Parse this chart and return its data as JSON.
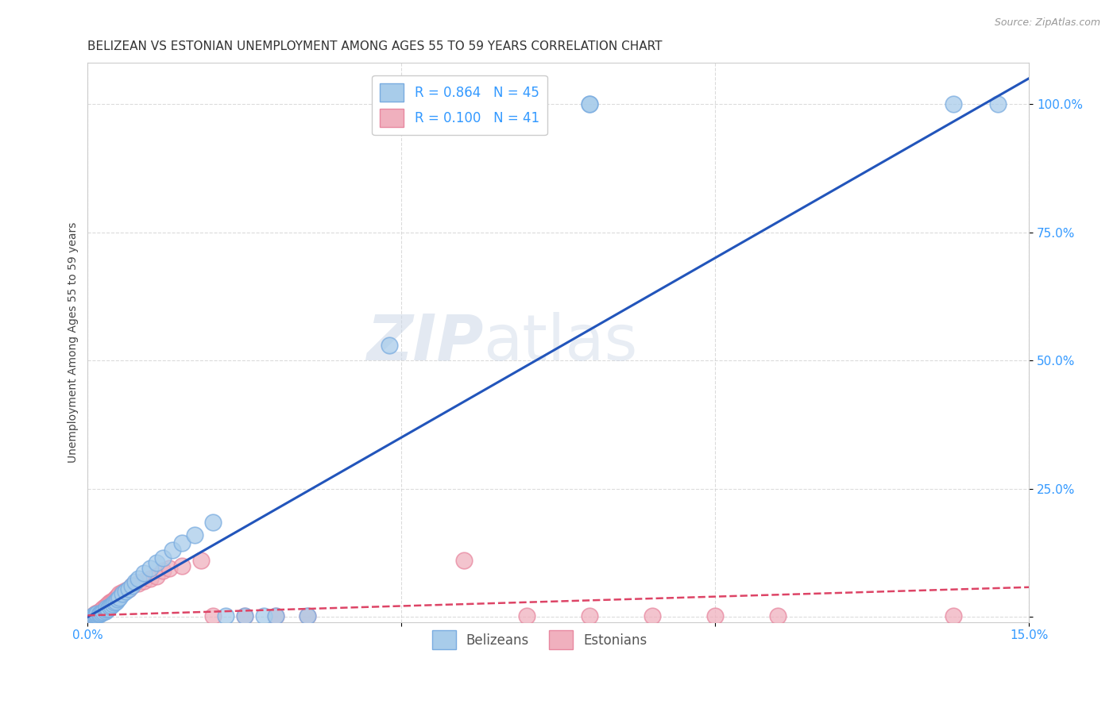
{
  "title": "BELIZEAN VS ESTONIAN UNEMPLOYMENT AMONG AGES 55 TO 59 YEARS CORRELATION CHART",
  "source": "Source: ZipAtlas.com",
  "ylabel": "Unemployment Among Ages 55 to 59 years",
  "xlim": [
    0.0,
    0.15
  ],
  "ylim": [
    -0.01,
    1.08
  ],
  "xticks": [
    0.0,
    0.05,
    0.1,
    0.15
  ],
  "xticklabels": [
    "0.0%",
    "",
    "",
    "15.0%"
  ],
  "ytick_positions": [
    0.0,
    0.25,
    0.5,
    0.75,
    1.0
  ],
  "yticklabels": [
    "",
    "25.0%",
    "50.0%",
    "75.0%",
    "100.0%"
  ],
  "watermark_zip": "ZIP",
  "watermark_atlas": "atlas",
  "belizean_color": "#a8ccea",
  "belizean_edge_color": "#7aace0",
  "estonian_color": "#f0b0be",
  "estonian_edge_color": "#e888a0",
  "belizean_line_color": "#2255bb",
  "estonian_line_color": "#dd4466",
  "legend_r_belizean": "R = 0.864",
  "legend_n_belizean": "N = 45",
  "legend_r_estonian": "R = 0.100",
  "legend_n_estonian": "N = 41",
  "belizean_x": [
    0.0008,
    0.001,
    0.0012,
    0.0015,
    0.0015,
    0.0018,
    0.002,
    0.0022,
    0.0025,
    0.0028,
    0.003,
    0.003,
    0.0032,
    0.0035,
    0.0038,
    0.004,
    0.0042,
    0.0045,
    0.0048,
    0.005,
    0.0055,
    0.006,
    0.0065,
    0.007,
    0.0075,
    0.008,
    0.009,
    0.01,
    0.011,
    0.012,
    0.0135,
    0.015,
    0.017,
    0.02,
    0.022,
    0.025,
    0.028,
    0.03,
    0.035,
    0.048,
    0.06,
    0.08,
    0.08,
    0.138,
    0.145
  ],
  "belizean_y": [
    0.002,
    0.003,
    0.003,
    0.004,
    0.006,
    0.005,
    0.006,
    0.008,
    0.01,
    0.012,
    0.014,
    0.018,
    0.016,
    0.02,
    0.022,
    0.025,
    0.028,
    0.03,
    0.035,
    0.038,
    0.045,
    0.05,
    0.055,
    0.06,
    0.068,
    0.075,
    0.085,
    0.095,
    0.105,
    0.115,
    0.13,
    0.145,
    0.16,
    0.185,
    0.002,
    0.002,
    0.002,
    0.002,
    0.002,
    0.53,
    1.0,
    1.0,
    1.0,
    1.0,
    1.0
  ],
  "estonian_x": [
    0.0008,
    0.001,
    0.0012,
    0.0015,
    0.0018,
    0.002,
    0.0022,
    0.0025,
    0.0028,
    0.003,
    0.0032,
    0.0035,
    0.0038,
    0.004,
    0.0042,
    0.0045,
    0.0048,
    0.005,
    0.0055,
    0.006,
    0.0065,
    0.007,
    0.008,
    0.009,
    0.01,
    0.011,
    0.012,
    0.013,
    0.015,
    0.018,
    0.02,
    0.025,
    0.03,
    0.035,
    0.06,
    0.07,
    0.08,
    0.09,
    0.1,
    0.11,
    0.138
  ],
  "estonian_y": [
    0.002,
    0.004,
    0.006,
    0.008,
    0.01,
    0.012,
    0.015,
    0.018,
    0.02,
    0.022,
    0.025,
    0.028,
    0.03,
    0.032,
    0.035,
    0.038,
    0.04,
    0.045,
    0.048,
    0.052,
    0.055,
    0.06,
    0.065,
    0.07,
    0.075,
    0.08,
    0.09,
    0.095,
    0.1,
    0.11,
    0.002,
    0.002,
    0.002,
    0.002,
    0.11,
    0.002,
    0.002,
    0.002,
    0.002,
    0.002,
    0.002
  ],
  "belizean_line_x": [
    0.0,
    0.15
  ],
  "belizean_line_y": [
    0.0,
    1.05
  ],
  "estonian_line_x": [
    0.0,
    0.15
  ],
  "estonian_line_y": [
    0.003,
    0.058
  ],
  "grid_color": "#cccccc",
  "background_color": "#ffffff",
  "title_fontsize": 11,
  "axis_label_fontsize": 10,
  "tick_fontsize": 11,
  "tick_color": "#3399ff",
  "legend_fontsize": 12
}
